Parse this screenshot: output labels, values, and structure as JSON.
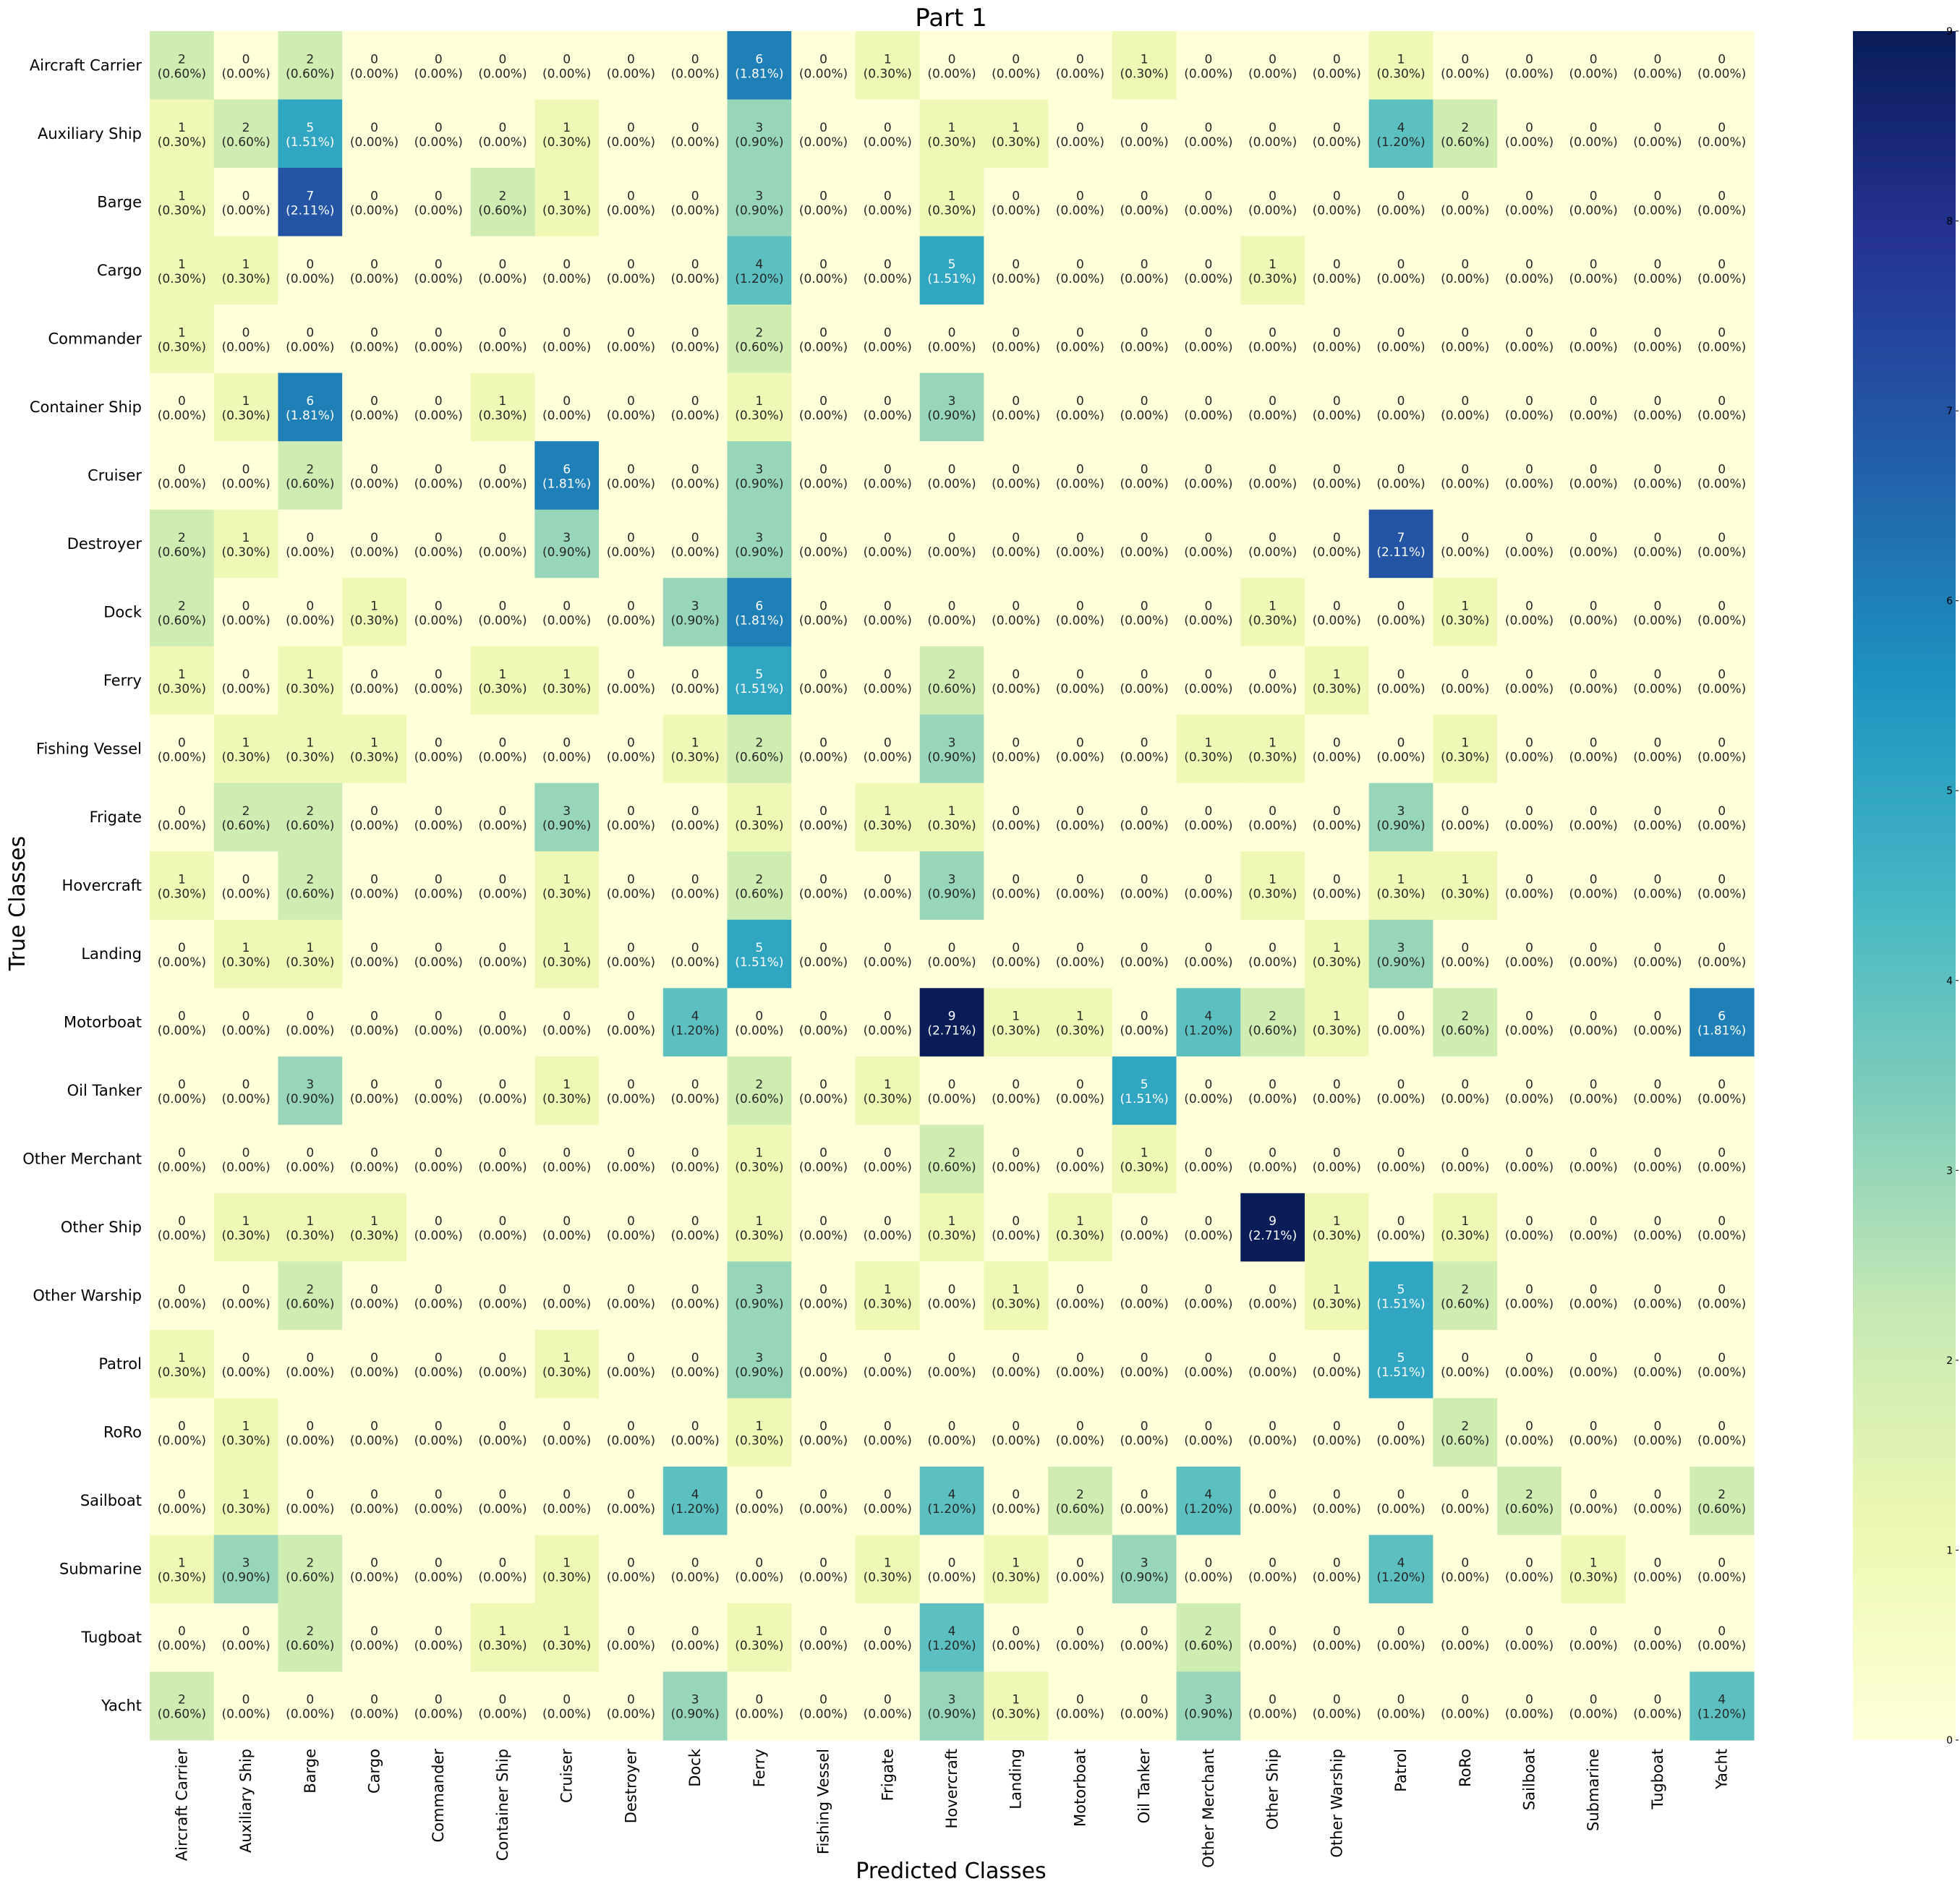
{
  "chart_data": {
    "type": "heatmap",
    "title": "Part 1",
    "xlabel": "Predicted Classes",
    "ylabel": "True Classes",
    "colormap": "YlGnBu",
    "vmin": 0,
    "vmax": 9,
    "colorbar_ticks": [
      "0",
      "1",
      "2",
      "3",
      "4",
      "5",
      "6",
      "7",
      "8",
      "9"
    ],
    "classes": [
      "Aircraft Carrier",
      "Auxiliary Ship",
      "Barge",
      "Cargo",
      "Commander",
      "Container Ship",
      "Cruiser",
      "Destroyer",
      "Dock",
      "Ferry",
      "Fishing Vessel",
      "Frigate",
      "Hovercraft",
      "Landing",
      "Motorboat",
      "Oil Tanker",
      "Other Merchant",
      "Other Ship",
      "Other Warship",
      "Patrol",
      "RoRo",
      "Sailboat",
      "Submarine",
      "Tugboat",
      "Yacht"
    ],
    "matrix": [
      [
        2,
        0,
        2,
        0,
        0,
        0,
        0,
        0,
        0,
        6,
        0,
        1,
        0,
        0,
        0,
        1,
        0,
        0,
        0,
        1,
        0,
        0,
        0,
        0,
        0
      ],
      [
        1,
        2,
        5,
        0,
        0,
        0,
        1,
        0,
        0,
        3,
        0,
        0,
        1,
        1,
        0,
        0,
        0,
        0,
        0,
        4,
        2,
        0,
        0,
        0,
        0
      ],
      [
        1,
        0,
        7,
        0,
        0,
        2,
        1,
        0,
        0,
        3,
        0,
        0,
        1,
        0,
        0,
        0,
        0,
        0,
        0,
        0,
        0,
        0,
        0,
        0,
        0
      ],
      [
        1,
        1,
        0,
        0,
        0,
        0,
        0,
        0,
        0,
        4,
        0,
        0,
        5,
        0,
        0,
        0,
        0,
        1,
        0,
        0,
        0,
        0,
        0,
        0,
        0
      ],
      [
        1,
        0,
        0,
        0,
        0,
        0,
        0,
        0,
        0,
        2,
        0,
        0,
        0,
        0,
        0,
        0,
        0,
        0,
        0,
        0,
        0,
        0,
        0,
        0,
        0
      ],
      [
        0,
        1,
        6,
        0,
        0,
        1,
        0,
        0,
        0,
        1,
        0,
        0,
        3,
        0,
        0,
        0,
        0,
        0,
        0,
        0,
        0,
        0,
        0,
        0,
        0
      ],
      [
        0,
        0,
        2,
        0,
        0,
        0,
        6,
        0,
        0,
        3,
        0,
        0,
        0,
        0,
        0,
        0,
        0,
        0,
        0,
        0,
        0,
        0,
        0,
        0,
        0
      ],
      [
        2,
        1,
        0,
        0,
        0,
        0,
        3,
        0,
        0,
        3,
        0,
        0,
        0,
        0,
        0,
        0,
        0,
        0,
        0,
        7,
        0,
        0,
        0,
        0,
        0
      ],
      [
        2,
        0,
        0,
        1,
        0,
        0,
        0,
        0,
        3,
        6,
        0,
        0,
        0,
        0,
        0,
        0,
        0,
        1,
        0,
        0,
        1,
        0,
        0,
        0,
        0
      ],
      [
        1,
        0,
        1,
        0,
        0,
        1,
        1,
        0,
        0,
        5,
        0,
        0,
        2,
        0,
        0,
        0,
        0,
        0,
        1,
        0,
        0,
        0,
        0,
        0,
        0
      ],
      [
        0,
        1,
        1,
        1,
        0,
        0,
        0,
        0,
        1,
        2,
        0,
        0,
        3,
        0,
        0,
        0,
        1,
        1,
        0,
        0,
        1,
        0,
        0,
        0,
        0
      ],
      [
        0,
        2,
        2,
        0,
        0,
        0,
        3,
        0,
        0,
        1,
        0,
        1,
        1,
        0,
        0,
        0,
        0,
        0,
        0,
        3,
        0,
        0,
        0,
        0,
        0
      ],
      [
        1,
        0,
        2,
        0,
        0,
        0,
        1,
        0,
        0,
        2,
        0,
        0,
        3,
        0,
        0,
        0,
        0,
        1,
        0,
        1,
        1,
        0,
        0,
        0,
        0
      ],
      [
        0,
        1,
        1,
        0,
        0,
        0,
        1,
        0,
        0,
        5,
        0,
        0,
        0,
        0,
        0,
        0,
        0,
        0,
        1,
        3,
        0,
        0,
        0,
        0,
        0
      ],
      [
        0,
        0,
        0,
        0,
        0,
        0,
        0,
        0,
        4,
        0,
        0,
        0,
        9,
        1,
        1,
        0,
        4,
        2,
        1,
        0,
        2,
        0,
        0,
        0,
        6
      ],
      [
        0,
        0,
        3,
        0,
        0,
        0,
        1,
        0,
        0,
        2,
        0,
        1,
        0,
        0,
        0,
        5,
        0,
        0,
        0,
        0,
        0,
        0,
        0,
        0,
        0
      ],
      [
        0,
        0,
        0,
        0,
        0,
        0,
        0,
        0,
        0,
        1,
        0,
        0,
        2,
        0,
        0,
        1,
        0,
        0,
        0,
        0,
        0,
        0,
        0,
        0,
        0
      ],
      [
        0,
        1,
        1,
        1,
        0,
        0,
        0,
        0,
        0,
        1,
        0,
        0,
        1,
        0,
        1,
        0,
        0,
        9,
        1,
        0,
        1,
        0,
        0,
        0,
        0
      ],
      [
        0,
        0,
        2,
        0,
        0,
        0,
        0,
        0,
        0,
        3,
        0,
        1,
        0,
        1,
        0,
        0,
        0,
        0,
        1,
        5,
        2,
        0,
        0,
        0,
        0
      ],
      [
        1,
        0,
        0,
        0,
        0,
        0,
        1,
        0,
        0,
        3,
        0,
        0,
        0,
        0,
        0,
        0,
        0,
        0,
        0,
        5,
        0,
        0,
        0,
        0,
        0
      ],
      [
        0,
        1,
        0,
        0,
        0,
        0,
        0,
        0,
        0,
        1,
        0,
        0,
        0,
        0,
        0,
        0,
        0,
        0,
        0,
        0,
        2,
        0,
        0,
        0,
        0
      ],
      [
        0,
        1,
        0,
        0,
        0,
        0,
        0,
        0,
        4,
        0,
        0,
        0,
        4,
        0,
        2,
        0,
        4,
        0,
        0,
        0,
        0,
        2,
        0,
        0,
        2
      ],
      [
        1,
        3,
        2,
        0,
        0,
        0,
        1,
        0,
        0,
        0,
        0,
        1,
        0,
        1,
        0,
        3,
        0,
        0,
        0,
        4,
        0,
        0,
        1,
        0,
        0
      ],
      [
        0,
        0,
        2,
        0,
        0,
        1,
        1,
        0,
        0,
        1,
        0,
        0,
        4,
        0,
        0,
        0,
        2,
        0,
        0,
        0,
        0,
        0,
        0,
        0,
        0
      ],
      [
        2,
        0,
        0,
        0,
        0,
        0,
        0,
        0,
        3,
        0,
        0,
        0,
        3,
        1,
        0,
        0,
        3,
        0,
        0,
        0,
        0,
        0,
        0,
        0,
        4
      ]
    ],
    "percent_labels": {
      "0": "(0.00%)",
      "1": "(0.30%)",
      "2": "(0.60%)",
      "3": "(0.90%)",
      "4": "(1.20%)",
      "5": "(1.51%)",
      "6": "(1.81%)",
      "7": "(2.11%)",
      "9": "(2.71%)"
    }
  }
}
